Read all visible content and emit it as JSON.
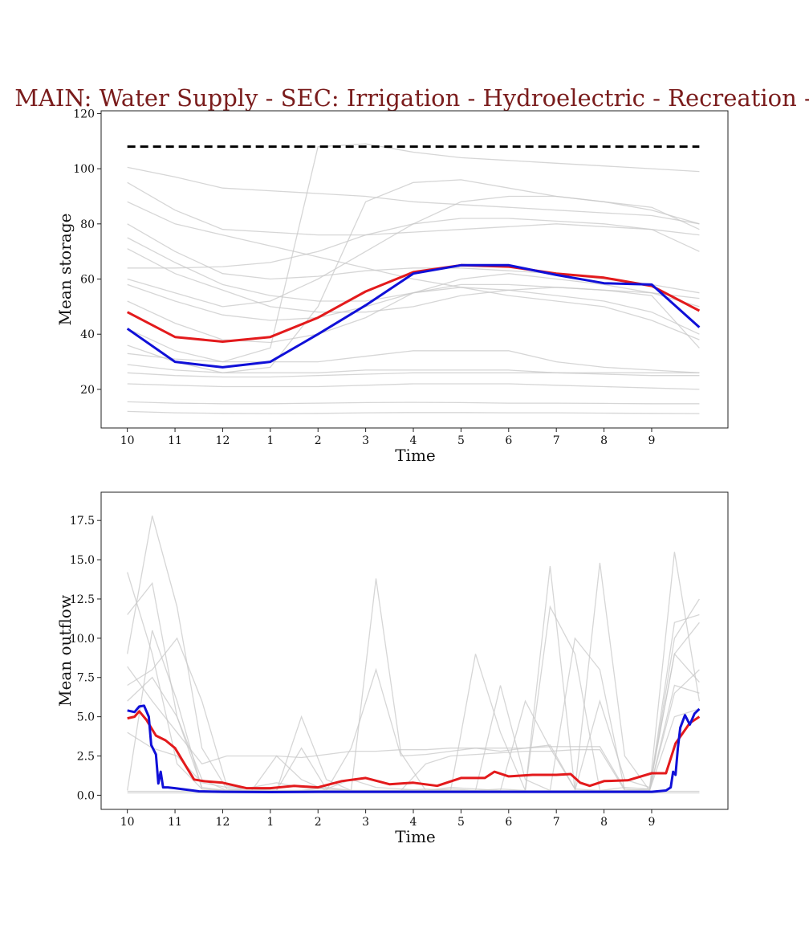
{
  "title": "MAIN: Water Supply - SEC: Irrigation - Hydroelectric - Recreation -",
  "colors": {
    "title": "#7a1c1c",
    "mean": "#e31a1c",
    "median": "#1010d8",
    "background_traces": "#c8c8c8",
    "capacity": "#000000"
  },
  "chart_data": [
    {
      "type": "line",
      "xlabel": "Time",
      "ylabel": "Mean storage",
      "categories": [
        "10",
        "11",
        "12",
        "1",
        "2",
        "3",
        "4",
        "5",
        "6",
        "7",
        "8",
        "9"
      ],
      "x": [
        0,
        1,
        2,
        3,
        4,
        5,
        6,
        7,
        8,
        9,
        10,
        11,
        12
      ],
      "xlim": [
        -0.55,
        12.6
      ],
      "ylim": [
        6,
        121
      ],
      "yticks": [
        20,
        40,
        60,
        80,
        100,
        120
      ],
      "capacity_line": 108,
      "grid": false,
      "series": [
        {
          "values": [
            48,
            39,
            37.3,
            39,
            46,
            55.5,
            62.5,
            65,
            64.5,
            62,
            60.5,
            57.5,
            48.5
          ]
        },
        {
          "values": [
            42,
            30,
            28,
            30,
            40,
            50.5,
            62,
            65,
            65,
            61.5,
            58.5,
            58,
            42.5
          ]
        }
      ],
      "background_traces": [
        [
          100.5,
          97,
          93,
          92,
          91,
          90,
          88,
          87,
          86,
          85,
          84,
          83,
          80
        ],
        [
          95,
          85,
          78,
          77,
          76,
          76,
          77,
          78,
          79,
          80,
          79,
          78,
          76
        ],
        [
          88,
          80,
          76,
          72,
          68,
          64,
          60,
          57,
          54,
          52,
          50,
          45,
          38
        ],
        [
          80,
          70,
          62,
          60,
          61,
          63,
          64,
          64,
          63,
          62,
          60,
          58,
          55
        ],
        [
          75,
          66,
          58,
          54,
          52,
          52,
          55,
          57,
          56,
          54,
          52,
          48,
          40
        ],
        [
          71,
          62,
          56,
          50,
          48,
          48,
          50,
          54,
          56,
          57,
          56,
          54,
          35
        ],
        [
          64,
          64,
          64.5,
          66,
          70,
          76,
          80,
          82,
          82,
          81,
          80,
          78,
          70
        ],
        [
          58,
          52,
          47,
          45,
          46,
          50,
          55,
          58,
          58,
          57,
          56,
          55,
          53
        ],
        [
          52,
          44,
          38,
          37,
          40,
          46,
          55,
          60,
          62,
          60,
          58,
          55,
          50
        ],
        [
          42,
          34,
          30,
          35,
          108,
          109,
          106,
          104,
          103,
          102,
          101,
          100,
          99
        ],
        [
          36,
          30,
          26,
          28,
          50,
          88,
          95,
          96,
          93,
          90,
          88,
          86,
          78
        ],
        [
          33,
          31,
          30,
          30,
          30,
          32,
          34,
          34,
          34,
          30,
          28,
          27,
          26
        ],
        [
          29,
          27,
          26,
          26,
          26,
          27,
          27,
          27,
          27,
          26,
          26,
          26,
          26
        ],
        [
          26,
          25,
          24.5,
          24.5,
          25,
          25.5,
          26,
          26,
          26,
          26,
          25.5,
          25,
          25
        ],
        [
          22,
          21.5,
          21,
          21,
          21,
          21.5,
          22,
          22,
          22,
          21.5,
          21,
          20.5,
          20
        ],
        [
          15.5,
          15,
          14.8,
          14.8,
          15,
          15.2,
          15.3,
          15.2,
          15,
          15,
          14.9,
          14.8,
          14.8
        ],
        [
          12,
          11.5,
          11.3,
          11.2,
          11.3,
          11.5,
          11.6,
          11.6,
          11.5,
          11.5,
          11.4,
          11.3,
          11.2
        ],
        [
          60,
          55,
          50,
          52,
          60,
          70,
          80,
          88,
          90,
          90,
          88,
          85,
          80
        ]
      ]
    },
    {
      "type": "line",
      "xlabel": "Time",
      "ylabel": "Mean outflow",
      "categories": [
        "10",
        "11",
        "12",
        "1",
        "2",
        "3",
        "4",
        "5",
        "6",
        "7",
        "8",
        "9"
      ],
      "xlim": [
        -0.55,
        12.6
      ],
      "ylim": [
        -0.9,
        19.3
      ],
      "yticks": [
        0.0,
        2.5,
        5.0,
        7.5,
        10.0,
        12.5,
        15.0,
        17.5
      ],
      "grid": false,
      "series": [
        {
          "x": [
            0,
            0.15,
            0.25,
            0.4,
            0.6,
            0.8,
            1.0,
            1.2,
            1.4,
            1.6,
            2.0,
            2.5,
            3.0,
            3.5,
            4.0,
            4.5,
            5.0,
            5.5,
            6.0,
            6.5,
            7.0,
            7.5,
            7.7,
            8.0,
            8.5,
            9.0,
            9.3,
            9.5,
            9.7,
            9.9,
            10.0,
            10.5,
            11.0,
            11.3,
            11.5,
            11.8,
            12.0
          ],
          "values": [
            4.9,
            5.0,
            5.35,
            4.8,
            3.8,
            3.5,
            3.0,
            2.0,
            1.0,
            0.9,
            0.8,
            0.45,
            0.45,
            0.6,
            0.5,
            0.9,
            1.1,
            0.7,
            0.8,
            0.6,
            1.1,
            1.1,
            1.5,
            1.2,
            1.3,
            1.3,
            1.35,
            0.8,
            0.6,
            0.8,
            0.9,
            0.95,
            1.4,
            1.4,
            3.3,
            4.6,
            5.0
          ]
        },
        {
          "x": [
            0,
            0.15,
            0.25,
            0.35,
            0.45,
            0.5,
            0.6,
            0.65,
            0.7,
            0.75,
            0.85,
            1.0,
            1.5,
            2.0,
            3.0,
            4.0,
            5.0,
            6.0,
            7.0,
            8.0,
            9.0,
            10.0,
            11.0,
            11.3,
            11.4,
            11.45,
            11.5,
            11.55,
            11.6,
            11.7,
            11.8,
            11.9,
            12.0
          ],
          "values": [
            5.4,
            5.3,
            5.65,
            5.7,
            5.0,
            3.2,
            2.6,
            0.75,
            1.5,
            0.5,
            0.5,
            0.45,
            0.25,
            0.22,
            0.2,
            0.22,
            0.22,
            0.22,
            0.22,
            0.22,
            0.22,
            0.22,
            0.22,
            0.3,
            0.5,
            1.5,
            1.3,
            3.0,
            4.3,
            5.1,
            4.5,
            5.2,
            5.5
          ]
        }
      ],
      "background_traces": [
        [
          14.2,
          9,
          2,
          0.4,
          0.3,
          0.5,
          0.8,
          0.5,
          0.4,
          1,
          0.5,
          0.4,
          0.3,
          0.5,
          0.4,
          0.3,
          6,
          3,
          0.4,
          0.3,
          0.5,
          0.4,
          9,
          11
        ],
        [
          11.5,
          13.5,
          5,
          1,
          0.3,
          0.3,
          2.5,
          1,
          0.3,
          3,
          8,
          2.5,
          2.6,
          2.8,
          3,
          2.8,
          3,
          3.2,
          0.4,
          14.8,
          2.5,
          0.3,
          11,
          11.5
        ],
        [
          9,
          17.8,
          12,
          3,
          0.4,
          0.3,
          0.3,
          5,
          1,
          0.3,
          13.8,
          2.7,
          0.3,
          0.4,
          0.3,
          0.4,
          0.3,
          14.6,
          0.3,
          6,
          1,
          0.5,
          9,
          7.2
        ],
        [
          7,
          8,
          10,
          6,
          0.6,
          0.4,
          0.3,
          0.3,
          0.5,
          0.3,
          0.3,
          0.3,
          0.4,
          0.3,
          0.3,
          7,
          1,
          0.3,
          0.3,
          0.3,
          0.3,
          0.4,
          15.5,
          6
        ],
        [
          8.2,
          6,
          4,
          2,
          2.5,
          2.5,
          2.5,
          2.4,
          2.6,
          2.8,
          2.8,
          2.9,
          2.9,
          3,
          3,
          3,
          3,
          3.1,
          3.1,
          3.1,
          0.4,
          0.3,
          6.5,
          8
        ],
        [
          6,
          7.5,
          5,
          0.5,
          0.3,
          0.3,
          0.3,
          3,
          0.4,
          0.3,
          0.3,
          0.3,
          0.3,
          0.3,
          9,
          4,
          0.3,
          0.3,
          10,
          8,
          0.3,
          0.3,
          7,
          6.5
        ],
        [
          4,
          3,
          2.5,
          0.8,
          0.5,
          0.4,
          0.3,
          0.3,
          0.3,
          0.3,
          0.3,
          0.3,
          2,
          2.5,
          2.6,
          2.7,
          2.8,
          2.8,
          2.9,
          2.9,
          0.3,
          0.3,
          5,
          5.5
        ],
        [
          0.3,
          10.5,
          6,
          0.4,
          0.3,
          0.3,
          0.3,
          0.3,
          0.3,
          0.3,
          0.3,
          0.3,
          0.3,
          0.3,
          0.3,
          0.3,
          0.3,
          12,
          9,
          0.3,
          0.3,
          0.3,
          10,
          12.5
        ],
        [
          0.25,
          0.25,
          0.25,
          0.25,
          0.25,
          0.25,
          0.25,
          0.25,
          0.25,
          0.25,
          0.25,
          0.25,
          0.25,
          0.25,
          0.25,
          0.25,
          0.25,
          0.25,
          0.25,
          0.25,
          0.25,
          0.25,
          0.25,
          0.25
        ],
        [
          0.15,
          0.15,
          0.15,
          0.15,
          0.15,
          0.15,
          0.15,
          0.15,
          0.15,
          0.15,
          0.15,
          0.15,
          0.15,
          0.15,
          0.15,
          0.15,
          0.15,
          0.15,
          0.15,
          0.15,
          0.15,
          0.15,
          0.15,
          0.15
        ]
      ]
    }
  ]
}
